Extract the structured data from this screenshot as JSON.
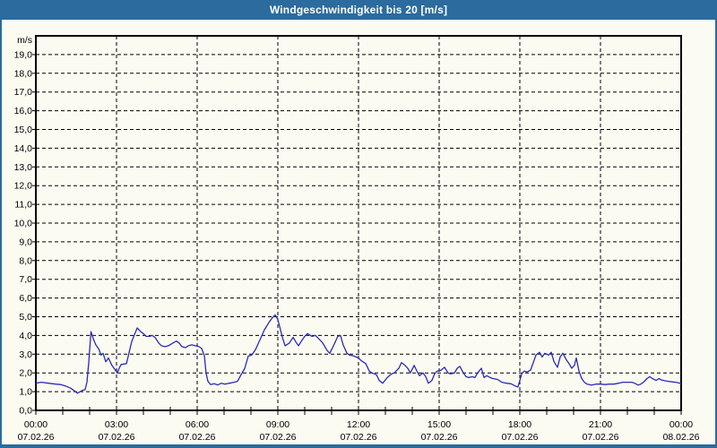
{
  "window": {
    "title": "Windgeschwindigkeit bis 20 [m/s]"
  },
  "colors": {
    "titlebar_bg": "#2b6b9e",
    "titlebar_text": "#ffffff",
    "frame": "#2b6b9e",
    "background": "#fbfbf2",
    "axis": "#000000",
    "grid": "#000000",
    "label_text": "#000000",
    "line": "#2a2ab8"
  },
  "chart_data": {
    "type": "line",
    "title": "Windgeschwindigkeit bis 20 [m/s]",
    "grid": "dashed",
    "legend": "none",
    "y_axis": {
      "unit_label": "m/s",
      "min": 0,
      "max": 20,
      "tick_step": 1.0,
      "tick_labels": [
        "0,0",
        "1,0",
        "2,0",
        "3,0",
        "4,0",
        "5,0",
        "6,0",
        "7,0",
        "8,0",
        "9,0",
        "10,0",
        "11,0",
        "12,0",
        "13,0",
        "14,0",
        "15,0",
        "16,0",
        "17,0",
        "18,0",
        "19,0"
      ]
    },
    "x_axis": {
      "min_hours": 0,
      "max_hours": 24,
      "major_tick_hours": 3,
      "minor_tick_hours": 1,
      "tick_labels": [
        {
          "time": "00:00",
          "date": "07.02.26"
        },
        {
          "time": "03:00",
          "date": "07.02.26"
        },
        {
          "time": "06:00",
          "date": "07.02.26"
        },
        {
          "time": "09:00",
          "date": "07.02.26"
        },
        {
          "time": "12:00",
          "date": "07.02.26"
        },
        {
          "time": "15:00",
          "date": "07.02.26"
        },
        {
          "time": "18:00",
          "date": "07.02.26"
        },
        {
          "time": "21:00",
          "date": "07.02.26"
        },
        {
          "time": "00:00",
          "date": "08.02.26"
        }
      ]
    },
    "series": [
      {
        "name": "Windgeschwindigkeit",
        "unit": "m/s",
        "points": [
          [
            0.0,
            1.45
          ],
          [
            0.2,
            1.5
          ],
          [
            0.47,
            1.45
          ],
          [
            0.73,
            1.4
          ],
          [
            0.93,
            1.38
          ],
          [
            1.1,
            1.3
          ],
          [
            1.3,
            1.18
          ],
          [
            1.45,
            1.02
          ],
          [
            1.55,
            0.92
          ],
          [
            1.65,
            1.0
          ],
          [
            1.75,
            1.08
          ],
          [
            1.83,
            1.1
          ],
          [
            1.9,
            1.5
          ],
          [
            1.97,
            2.6
          ],
          [
            2.05,
            4.2
          ],
          [
            2.13,
            3.85
          ],
          [
            2.23,
            3.5
          ],
          [
            2.33,
            3.3
          ],
          [
            2.43,
            2.95
          ],
          [
            2.5,
            3.05
          ],
          [
            2.6,
            2.6
          ],
          [
            2.7,
            2.8
          ],
          [
            2.83,
            2.4
          ],
          [
            2.93,
            2.2
          ],
          [
            3.03,
            2.0
          ],
          [
            3.1,
            2.25
          ],
          [
            3.17,
            2.45
          ],
          [
            3.37,
            2.5
          ],
          [
            3.47,
            3.1
          ],
          [
            3.57,
            3.7
          ],
          [
            3.77,
            4.4
          ],
          [
            3.9,
            4.2
          ],
          [
            4.0,
            4.1
          ],
          [
            4.1,
            3.95
          ],
          [
            4.23,
            3.95
          ],
          [
            4.33,
            4.0
          ],
          [
            4.43,
            3.9
          ],
          [
            4.57,
            3.6
          ],
          [
            4.67,
            3.45
          ],
          [
            4.8,
            3.4
          ],
          [
            4.93,
            3.45
          ],
          [
            5.1,
            3.6
          ],
          [
            5.23,
            3.7
          ],
          [
            5.33,
            3.6
          ],
          [
            5.43,
            3.4
          ],
          [
            5.57,
            3.35
          ],
          [
            5.67,
            3.45
          ],
          [
            5.8,
            3.5
          ],
          [
            5.93,
            3.45
          ],
          [
            6.07,
            3.4
          ],
          [
            6.17,
            3.3
          ],
          [
            6.27,
            2.9
          ],
          [
            6.33,
            2.0
          ],
          [
            6.4,
            1.55
          ],
          [
            6.5,
            1.38
          ],
          [
            6.63,
            1.42
          ],
          [
            6.77,
            1.36
          ],
          [
            6.9,
            1.45
          ],
          [
            7.03,
            1.4
          ],
          [
            7.2,
            1.45
          ],
          [
            7.37,
            1.5
          ],
          [
            7.5,
            1.55
          ],
          [
            7.63,
            1.9
          ],
          [
            7.77,
            2.25
          ],
          [
            7.9,
            2.9
          ],
          [
            8.03,
            2.95
          ],
          [
            8.17,
            3.25
          ],
          [
            8.33,
            3.75
          ],
          [
            8.5,
            4.3
          ],
          [
            8.67,
            4.7
          ],
          [
            8.8,
            4.95
          ],
          [
            8.9,
            5.1
          ],
          [
            9.0,
            4.85
          ],
          [
            9.17,
            3.9
          ],
          [
            9.27,
            3.45
          ],
          [
            9.43,
            3.6
          ],
          [
            9.57,
            3.9
          ],
          [
            9.67,
            3.65
          ],
          [
            9.77,
            3.45
          ],
          [
            9.9,
            3.75
          ],
          [
            10.0,
            3.95
          ],
          [
            10.1,
            4.1
          ],
          [
            10.27,
            3.95
          ],
          [
            10.4,
            4.0
          ],
          [
            10.57,
            3.75
          ],
          [
            10.67,
            3.6
          ],
          [
            10.83,
            3.2
          ],
          [
            10.93,
            3.05
          ],
          [
            11.07,
            3.45
          ],
          [
            11.23,
            3.95
          ],
          [
            11.33,
            4.0
          ],
          [
            11.43,
            3.5
          ],
          [
            11.57,
            3.05
          ],
          [
            11.67,
            2.95
          ],
          [
            11.83,
            2.9
          ],
          [
            12.0,
            2.8
          ],
          [
            12.1,
            2.65
          ],
          [
            12.27,
            2.5
          ],
          [
            12.4,
            2.1
          ],
          [
            12.5,
            2.0
          ],
          [
            12.67,
            1.9
          ],
          [
            12.77,
            1.6
          ],
          [
            12.9,
            1.45
          ],
          [
            13.07,
            1.75
          ],
          [
            13.23,
            1.95
          ],
          [
            13.33,
            2.0
          ],
          [
            13.5,
            2.25
          ],
          [
            13.6,
            2.55
          ],
          [
            13.73,
            2.4
          ],
          [
            13.83,
            2.25
          ],
          [
            13.93,
            2.0
          ],
          [
            14.07,
            2.4
          ],
          [
            14.17,
            2.1
          ],
          [
            14.27,
            1.85
          ],
          [
            14.4,
            2.0
          ],
          [
            14.5,
            1.8
          ],
          [
            14.6,
            1.45
          ],
          [
            14.73,
            1.6
          ],
          [
            14.83,
            1.95
          ],
          [
            14.93,
            2.1
          ],
          [
            15.07,
            2.15
          ],
          [
            15.2,
            2.3
          ],
          [
            15.33,
            2.0
          ],
          [
            15.43,
            1.95
          ],
          [
            15.57,
            2.0
          ],
          [
            15.67,
            2.25
          ],
          [
            15.77,
            2.35
          ],
          [
            15.9,
            2.0
          ],
          [
            16.0,
            1.8
          ],
          [
            16.1,
            1.75
          ],
          [
            16.23,
            1.8
          ],
          [
            16.33,
            1.75
          ],
          [
            16.43,
            2.0
          ],
          [
            16.57,
            2.25
          ],
          [
            16.67,
            1.75
          ],
          [
            16.77,
            1.85
          ],
          [
            16.9,
            1.75
          ],
          [
            17.0,
            1.7
          ],
          [
            17.17,
            1.65
          ],
          [
            17.33,
            1.5
          ],
          [
            17.5,
            1.45
          ],
          [
            17.67,
            1.42
          ],
          [
            17.83,
            1.3
          ],
          [
            17.93,
            1.25
          ],
          [
            18.0,
            1.6
          ],
          [
            18.07,
            1.95
          ],
          [
            18.17,
            2.1
          ],
          [
            18.27,
            2.05
          ],
          [
            18.4,
            2.15
          ],
          [
            18.5,
            2.55
          ],
          [
            18.6,
            2.95
          ],
          [
            18.73,
            3.1
          ],
          [
            18.83,
            2.85
          ],
          [
            18.93,
            3.05
          ],
          [
            19.07,
            2.95
          ],
          [
            19.17,
            3.1
          ],
          [
            19.27,
            2.6
          ],
          [
            19.4,
            2.3
          ],
          [
            19.5,
            2.85
          ],
          [
            19.6,
            3.05
          ],
          [
            19.73,
            2.7
          ],
          [
            19.83,
            2.5
          ],
          [
            19.93,
            2.25
          ],
          [
            20.03,
            2.4
          ],
          [
            20.1,
            2.8
          ],
          [
            20.2,
            2.1
          ],
          [
            20.3,
            1.7
          ],
          [
            20.4,
            1.5
          ],
          [
            20.5,
            1.4
          ],
          [
            20.67,
            1.35
          ],
          [
            20.83,
            1.4
          ],
          [
            21.0,
            1.4
          ],
          [
            21.17,
            1.38
          ],
          [
            21.33,
            1.4
          ],
          [
            21.5,
            1.4
          ],
          [
            21.67,
            1.45
          ],
          [
            21.83,
            1.5
          ],
          [
            22.0,
            1.5
          ],
          [
            22.17,
            1.5
          ],
          [
            22.27,
            1.45
          ],
          [
            22.4,
            1.35
          ],
          [
            22.5,
            1.4
          ],
          [
            22.6,
            1.5
          ],
          [
            22.73,
            1.7
          ],
          [
            22.83,
            1.8
          ],
          [
            22.93,
            1.7
          ],
          [
            23.07,
            1.6
          ],
          [
            23.17,
            1.7
          ],
          [
            23.27,
            1.62
          ],
          [
            23.4,
            1.58
          ],
          [
            23.53,
            1.55
          ],
          [
            23.67,
            1.52
          ],
          [
            23.8,
            1.5
          ],
          [
            23.9,
            1.47
          ],
          [
            24.0,
            1.42
          ]
        ]
      }
    ]
  }
}
